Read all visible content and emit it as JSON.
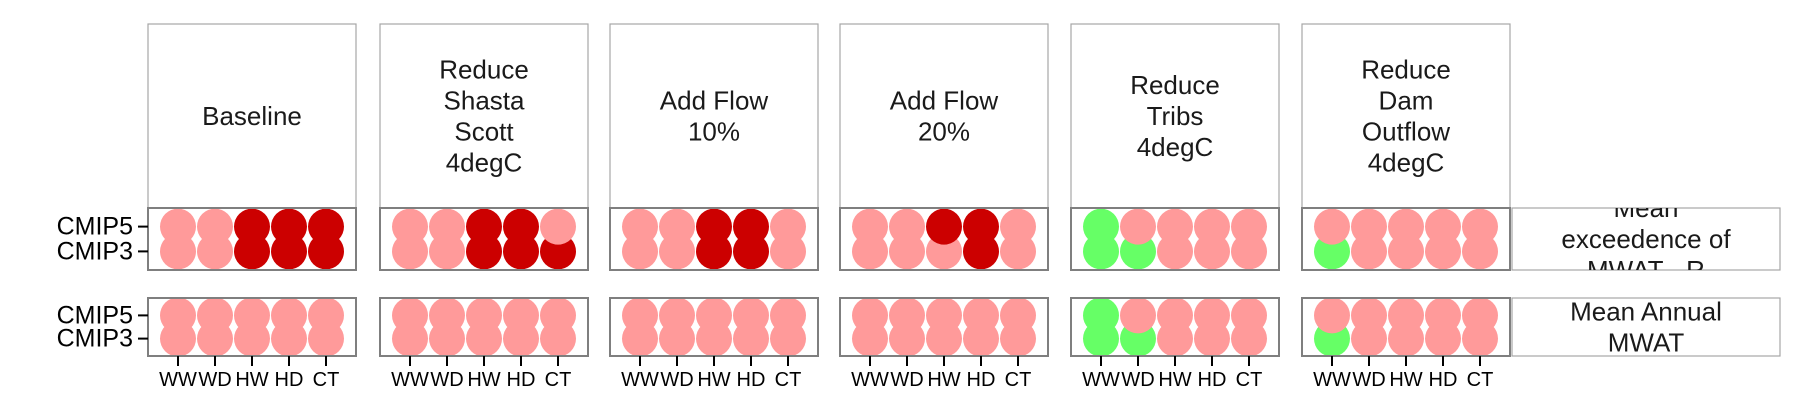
{
  "chart_data": {
    "type": "dot-matrix",
    "facets": [
      "Baseline",
      "Reduce Shasta Scott 4degC",
      "Add Flow 10%",
      "Add Flow 20%",
      "Reduce Tribs 4degC",
      "Reduce Dam Outflow 4degC"
    ],
    "facet_lines": [
      [
        "Baseline"
      ],
      [
        "Reduce",
        "Shasta",
        "Scott",
        "4degC"
      ],
      [
        "Add Flow",
        "10%"
      ],
      [
        "Add Flow",
        "20%"
      ],
      [
        "Reduce",
        "Tribs",
        "4degC"
      ],
      [
        "Reduce",
        "Dam",
        "Outflow",
        "4degC"
      ]
    ],
    "metrics": [
      "Mean exceedence of MWAT - R",
      "Mean Annual MWAT"
    ],
    "metric_lines": [
      [
        "Mean",
        "exceedence of",
        "MWAT - R"
      ],
      [
        "Mean Annual",
        "MWAT"
      ]
    ],
    "y_categories": [
      "CMIP5",
      "CMIP3"
    ],
    "x_categories": [
      "WW",
      "WD",
      "HW",
      "HD",
      "CT"
    ],
    "legend": "none",
    "colors": {
      "light_red": "#ff9a9a",
      "dark_red": "#cc0000",
      "green": "#66ff66",
      "panel_border": "#7f7f7f",
      "strip_border": "#a6a6a6"
    },
    "cells": [
      [
        {
          "CMIP5": [
            "light_red",
            "light_red",
            "dark_red",
            "dark_red",
            "dark_red"
          ],
          "CMIP3": [
            "light_red",
            "light_red",
            "dark_red",
            "dark_red",
            "dark_red"
          ]
        },
        {
          "CMIP5": [
            "light_red",
            "light_red",
            "dark_red",
            "dark_red",
            "light_red"
          ],
          "CMIP3": [
            "light_red",
            "light_red",
            "dark_red",
            "dark_red",
            "dark_red"
          ]
        },
        {
          "CMIP5": [
            "light_red",
            "light_red",
            "dark_red",
            "dark_red",
            "light_red"
          ],
          "CMIP3": [
            "light_red",
            "light_red",
            "dark_red",
            "dark_red",
            "light_red"
          ]
        },
        {
          "CMIP5": [
            "light_red",
            "light_red",
            "dark_red",
            "dark_red",
            "light_red"
          ],
          "CMIP3": [
            "light_red",
            "light_red",
            "light_red",
            "dark_red",
            "light_red"
          ]
        },
        {
          "CMIP5": [
            "green",
            "light_red",
            "light_red",
            "light_red",
            "light_red"
          ],
          "CMIP3": [
            "green",
            "green",
            "light_red",
            "light_red",
            "light_red"
          ]
        },
        {
          "CMIP5": [
            "light_red",
            "light_red",
            "light_red",
            "light_red",
            "light_red"
          ],
          "CMIP3": [
            "green",
            "light_red",
            "light_red",
            "light_red",
            "light_red"
          ]
        }
      ],
      [
        {
          "CMIP5": [
            "light_red",
            "light_red",
            "light_red",
            "light_red",
            "light_red"
          ],
          "CMIP3": [
            "light_red",
            "light_red",
            "light_red",
            "light_red",
            "light_red"
          ]
        },
        {
          "CMIP5": [
            "light_red",
            "light_red",
            "light_red",
            "light_red",
            "light_red"
          ],
          "CMIP3": [
            "light_red",
            "light_red",
            "light_red",
            "light_red",
            "light_red"
          ]
        },
        {
          "CMIP5": [
            "light_red",
            "light_red",
            "light_red",
            "light_red",
            "light_red"
          ],
          "CMIP3": [
            "light_red",
            "light_red",
            "light_red",
            "light_red",
            "light_red"
          ]
        },
        {
          "CMIP5": [
            "light_red",
            "light_red",
            "light_red",
            "light_red",
            "light_red"
          ],
          "CMIP3": [
            "light_red",
            "light_red",
            "light_red",
            "light_red",
            "light_red"
          ]
        },
        {
          "CMIP5": [
            "green",
            "light_red",
            "light_red",
            "light_red",
            "light_red"
          ],
          "CMIP3": [
            "green",
            "green",
            "light_red",
            "light_red",
            "light_red"
          ]
        },
        {
          "CMIP5": [
            "light_red",
            "light_red",
            "light_red",
            "light_red",
            "light_red"
          ],
          "CMIP3": [
            "green",
            "light_red",
            "light_red",
            "light_red",
            "light_red"
          ]
        }
      ]
    ]
  }
}
